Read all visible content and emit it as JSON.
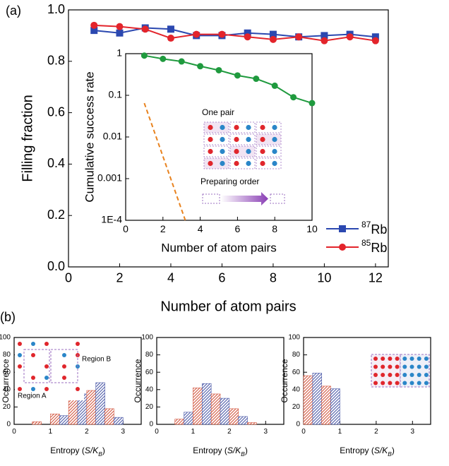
{
  "chart_data": [
    {
      "type": "line",
      "label": "(a)",
      "xlabel": "Number of atom pairs",
      "ylabel": "Filling fraction",
      "xlim": [
        0,
        12.5
      ],
      "xticks": [
        0,
        2,
        4,
        6,
        8,
        10,
        12
      ],
      "ylim": [
        0,
        1
      ],
      "yticks": [
        {
          "value": 0,
          "label": "0.0"
        },
        0.2,
        0.4,
        0.6,
        0.8,
        {
          "value": 1,
          "label": "1.0"
        }
      ],
      "legend": "lower right",
      "series": [
        {
          "name": "87Rb",
          "color": "#2b48b0",
          "marker": "square",
          "x": [
            1,
            2,
            3,
            4,
            5,
            6,
            7,
            8,
            9,
            10,
            11,
            12
          ],
          "values": [
            0.92,
            0.91,
            0.93,
            0.925,
            0.9,
            0.9,
            0.91,
            0.905,
            0.895,
            0.9,
            0.905,
            0.895
          ]
        },
        {
          "name": "85Rb",
          "color": "#e3242b",
          "marker": "circle",
          "x": [
            1,
            2,
            3,
            4,
            5,
            6,
            7,
            8,
            9,
            10,
            11,
            12
          ],
          "values": [
            0.94,
            0.935,
            0.925,
            0.89,
            0.905,
            0.905,
            0.895,
            0.885,
            0.895,
            0.88,
            0.895,
            0.88
          ]
        }
      ]
    },
    {
      "type": "line",
      "log_y": true,
      "xlabel": "Number of atom pairs",
      "ylabel": "Cumulative success rate",
      "xlim": [
        0,
        10
      ],
      "xticks": [
        0,
        2,
        4,
        6,
        8,
        10
      ],
      "ylim": [
        0.0001,
        1
      ],
      "yticks": [
        1,
        0.1,
        0.01,
        0.001,
        {
          "value": 0.0001,
          "label": "1E-4"
        }
      ],
      "annotations": [
        "One pair",
        "Preparing order"
      ],
      "series": [
        {
          "color": "#1f9a3e",
          "marker": "circle",
          "x": [
            1,
            2,
            3,
            4,
            5,
            6,
            7,
            8,
            9,
            10
          ],
          "values": [
            0.9,
            0.75,
            0.65,
            0.5,
            0.4,
            0.3,
            0.25,
            0.17,
            0.09,
            0.065
          ]
        },
        {
          "color": "#e8821e",
          "marker": "none",
          "linestyle": "dashed",
          "x": [
            1,
            3.2
          ],
          "values": [
            0.065,
            0.0001
          ]
        }
      ]
    },
    {
      "type": "histogram",
      "label": "(b)",
      "ylabel": "Occurrence",
      "xlabel": [
        "Entropy (",
        "S/K",
        "B",
        ")"
      ],
      "xlim": [
        0,
        3.5
      ],
      "xticks": [
        0,
        1,
        2,
        3
      ],
      "ylim": [
        0,
        100
      ],
      "yticks": [
        0,
        20,
        40,
        60,
        80,
        100
      ],
      "annotations": [
        "Region A",
        "Region B"
      ],
      "bins": [
        0,
        0.25,
        0.5,
        0.75,
        1,
        1.25,
        1.5,
        1.75,
        2,
        2.25,
        2.5,
        2.75,
        3
      ],
      "values": [
        null,
        null,
        3,
        null,
        12,
        10,
        34,
        35,
        39,
        48,
        18,
        8
      ],
      "colors": [
        "#d2553e",
        "#4c5aa8",
        "#d2553e",
        "#4c5aa8",
        "#d2553e",
        "#4c5aa8",
        "#d2553e",
        "#4c5aa8",
        "#d2553e",
        "#4c5aa8",
        "#d2553e",
        "#4c5aa8"
      ]
    },
    {
      "type": "histogram",
      "ylabel": "Occurrence",
      "xlabel": [
        "Entropy (",
        "S/K",
        "B",
        ")"
      ],
      "xlim": [
        0,
        3.5
      ],
      "xticks": [
        0,
        1,
        2,
        3
      ],
      "ylim": [
        0,
        100
      ],
      "yticks": [
        0,
        20,
        40,
        60,
        80,
        100
      ],
      "bins": [
        0,
        0.25,
        0.5,
        0.75,
        1,
        1.25,
        1.5,
        1.75,
        2,
        2.25,
        2.5,
        2.75,
        3
      ],
      "values": [
        null,
        null,
        6,
        14,
        42,
        47,
        35,
        30,
        18,
        9,
        2,
        null
      ],
      "colors": [
        "#d2553e",
        "#4c5aa8",
        "#d2553e",
        "#4c5aa8",
        "#d2553e",
        "#4c5aa8",
        "#d2553e",
        "#4c5aa8",
        "#d2553e",
        "#4c5aa8",
        "#d2553e",
        "#4c5aa8"
      ]
    },
    {
      "type": "histogram",
      "ylabel": "Occurrence",
      "xlabel": [
        "Entropy (",
        "S/K",
        "B",
        ")"
      ],
      "xlim": [
        0,
        3.5
      ],
      "xticks": [
        0,
        1,
        2,
        3
      ],
      "ylim": [
        0,
        100
      ],
      "yticks": [
        0,
        20,
        40,
        60,
        80,
        100
      ],
      "bins": [
        0,
        0.25,
        0.5,
        0.75,
        1,
        1.25,
        1.5,
        1.75,
        2,
        2.25,
        2.5,
        2.75,
        3
      ],
      "values": [
        56,
        59,
        44,
        41,
        null,
        null,
        null,
        null,
        null,
        null,
        null,
        null
      ],
      "colors": [
        "#d2553e",
        "#4c5aa8",
        "#d2553e",
        "#4c5aa8",
        "#d2553e",
        "#4c5aa8",
        "#d2553e",
        "#4c5aa8",
        "#d2553e",
        "#4c5aa8",
        "#d2553e",
        "#4c5aa8"
      ]
    }
  ]
}
